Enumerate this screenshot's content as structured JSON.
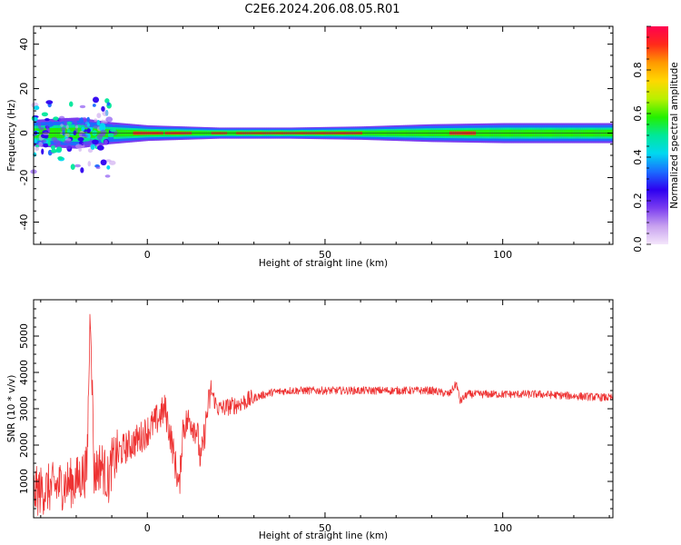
{
  "figure_title": "C2E6.2024.206.08.05.R01",
  "colors": {
    "snr_line": "#ee3333",
    "colormap": [
      "#f4e6fb",
      "#c8a2ef",
      "#7a3cf0",
      "#2d00f0",
      "#1a6cff",
      "#00d8f0",
      "#00e89a",
      "#24f000",
      "#b8f000",
      "#ffd800",
      "#ff9a00",
      "#ff2a1a",
      "#ff0050"
    ]
  },
  "chart_data": [
    {
      "type": "heatmap",
      "title": "",
      "xlabel": "Height of straight line (km)",
      "ylabel": "Frequency (Hz)",
      "xlim": [
        -32,
        131
      ],
      "ylim": [
        -50,
        48
      ],
      "xticks": [
        0,
        50,
        100
      ],
      "xtick_labels": [
        "0",
        "50",
        "100"
      ],
      "yticks": [
        -40,
        -20,
        0,
        20,
        40
      ],
      "ytick_labels": [
        "-40",
        "-20",
        "0",
        "20",
        "40"
      ],
      "center_frequency": 0,
      "colorbar": {
        "label": "Normalized spectral amplitude",
        "range": [
          0,
          1
        ],
        "ticks": [
          0.0,
          0.2,
          0.4,
          0.6,
          0.8
        ],
        "tick_labels": [
          "0.0",
          "0.2",
          "0.4",
          "0.6",
          "0.8"
        ]
      },
      "band_halfwidth_hz": [
        [
          -32,
          6
        ],
        [
          -20,
          7
        ],
        [
          -11,
          5
        ],
        [
          0,
          3.5
        ],
        [
          20,
          2.5
        ],
        [
          40,
          2.5
        ],
        [
          60,
          3
        ],
        [
          80,
          4
        ],
        [
          100,
          4.5
        ],
        [
          131,
          4.5
        ]
      ],
      "peak_segments_km": [
        [
          -4,
          4
        ],
        [
          5,
          12
        ],
        [
          18,
          22
        ],
        [
          25,
          60
        ],
        [
          85,
          92
        ]
      ],
      "scatter_region_km": [
        -32,
        -9
      ],
      "grid": false
    },
    {
      "type": "line",
      "title": "",
      "xlabel": "Height of straight line (km)",
      "ylabel": "SNR (10 * v/v)",
      "xlim": [
        -32,
        131
      ],
      "ylim": [
        0,
        6000
      ],
      "xticks": [
        0,
        50,
        100
      ],
      "xtick_labels": [
        "0",
        "50",
        "100"
      ],
      "yticks": [
        1000,
        2000,
        3000,
        4000,
        5000
      ],
      "ytick_labels": [
        "1000",
        "2000",
        "3000",
        "4000",
        "5000"
      ],
      "series": [
        {
          "x": [
            -32,
            -28,
            -24,
            -20,
            -17,
            -16,
            -15,
            -13,
            -11,
            -10,
            -8,
            -5,
            -2,
            0,
            2,
            5,
            7,
            9,
            10,
            12,
            14,
            15,
            17,
            18,
            19,
            20,
            25,
            30,
            35,
            40,
            50,
            60,
            70,
            80,
            85,
            87,
            88,
            90,
            95,
            100,
            110,
            120,
            131
          ],
          "y": [
            700,
            800,
            900,
            1000,
            1300,
            6000,
            1200,
            1500,
            1000,
            1500,
            1800,
            2000,
            2200,
            2400,
            2600,
            3000,
            2000,
            800,
            2500,
            2700,
            2400,
            1500,
            3000,
            3500,
            3200,
            3000,
            3100,
            3300,
            3450,
            3500,
            3500,
            3500,
            3500,
            3500,
            3400,
            3700,
            3200,
            3400,
            3400,
            3400,
            3400,
            3350,
            3300
          ]
        }
      ],
      "grid": false
    }
  ]
}
